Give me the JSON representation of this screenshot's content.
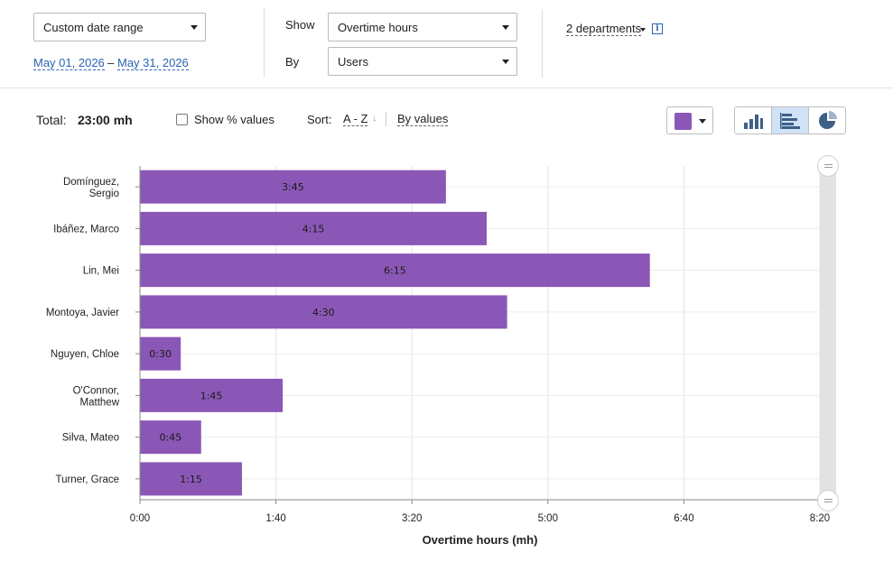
{
  "filters": {
    "range_select": "Custom date range",
    "date_from": "May 01, 2026",
    "date_sep": "–",
    "date_to": "May 31, 2026",
    "show_label": "Show",
    "show_select": "Overtime hours",
    "by_label": "By",
    "by_select": "Users",
    "departments": "2 departments",
    "info_glyph": "i"
  },
  "toolbar": {
    "total_label": "Total:",
    "total_value": "23:00 mh",
    "show_pct_label": "Show % values",
    "show_pct_checked": false,
    "sort_label": "Sort:",
    "sort_az": "A - Z",
    "sort_arrow": "↓",
    "sort_by_values": "By values",
    "accent_color": "#8b57b6",
    "chart_types": [
      "vertical-bar-chart-icon",
      "horizontal-bar-chart-icon",
      "pie-chart-icon"
    ],
    "active_chart_type": "horizontal-bar-chart-icon"
  },
  "chart_data": {
    "type": "bar",
    "orientation": "horizontal",
    "categories": [
      [
        "Domínguez,",
        "Sergio"
      ],
      [
        "Ibáñez, Marco"
      ],
      [
        "Lin, Mei"
      ],
      [
        "Montoya, Javier"
      ],
      [
        "Nguyen, Chloe"
      ],
      [
        "O'Connor,",
        "Matthew"
      ],
      [
        "Silva, Mateo"
      ],
      [
        "Turner, Grace"
      ]
    ],
    "values": [
      225,
      255,
      375,
      270,
      30,
      105,
      45,
      75
    ],
    "value_labels": [
      "3:45",
      "4:15",
      "6:15",
      "4:30",
      "0:30",
      "1:45",
      "0:45",
      "1:15"
    ],
    "x_ticks": [
      0,
      100,
      200,
      300,
      400,
      500
    ],
    "x_tick_labels": [
      "0:00",
      "1:40",
      "3:20",
      "5:00",
      "6:40",
      "8:20"
    ],
    "xlim": [
      0,
      500
    ],
    "xlabel": "Overtime hours (mh)",
    "grid": true,
    "bar_color": "#8b57b6"
  }
}
